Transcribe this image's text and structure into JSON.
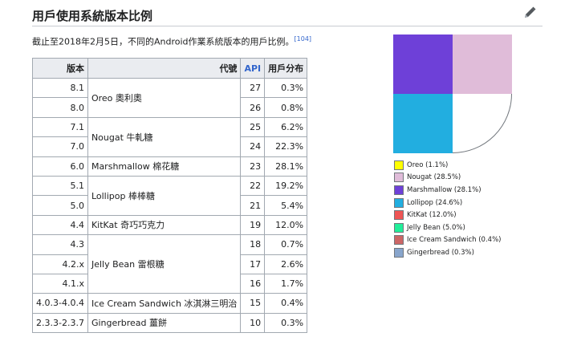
{
  "section": {
    "title": "用戶使用系統版本比例",
    "edit_icon": "pencil-icon",
    "intro_text": "截止至2018年2月5日，不同的Android作業系統版本的用戶比例。",
    "ref_label": "[104]"
  },
  "table": {
    "headers": {
      "version": "版本",
      "codename": "代號",
      "api": "API",
      "share": "用戶分布"
    },
    "groups": [
      {
        "codename": "Oreo 奧利奧",
        "rows": [
          {
            "version": "8.1",
            "api": "27",
            "share": "0.3%"
          },
          {
            "version": "8.0",
            "api": "26",
            "share": "0.8%"
          }
        ]
      },
      {
        "codename": "Nougat 牛軋糖",
        "rows": [
          {
            "version": "7.1",
            "api": "25",
            "share": "6.2%"
          },
          {
            "version": "7.0",
            "api": "24",
            "share": "22.3%"
          }
        ]
      },
      {
        "codename": "Marshmallow 棉花糖",
        "rows": [
          {
            "version": "6.0",
            "api": "23",
            "share": "28.1%"
          }
        ]
      },
      {
        "codename": "Lollipop 棒棒糖",
        "rows": [
          {
            "version": "5.1",
            "api": "22",
            "share": "19.2%"
          },
          {
            "version": "5.0",
            "api": "21",
            "share": "5.4%"
          }
        ]
      },
      {
        "codename": "KitKat 奇巧巧克力",
        "rows": [
          {
            "version": "4.4",
            "api": "19",
            "share": "12.0%"
          }
        ]
      },
      {
        "codename": "Jelly Bean 雷根糖",
        "rows": [
          {
            "version": "4.3",
            "api": "18",
            "share": "0.7%"
          },
          {
            "version": "4.2.x",
            "api": "17",
            "share": "2.6%"
          },
          {
            "version": "4.1.x",
            "api": "16",
            "share": "1.7%"
          }
        ]
      },
      {
        "codename": "Ice Cream Sandwich 冰淇淋三明治",
        "rows": [
          {
            "version": "4.0.3-4.0.4",
            "api": "15",
            "share": "0.4%"
          }
        ]
      },
      {
        "codename": "Gingerbread 薑餅",
        "rows": [
          {
            "version": "2.3.3-2.3.7",
            "api": "10",
            "share": "0.3%"
          }
        ]
      }
    ]
  },
  "chart_data": {
    "type": "pie",
    "series": [
      {
        "name": "Oreo",
        "label": "Oreo (1.1%)",
        "value": 1.1,
        "color": "#ffff00"
      },
      {
        "name": "Nougat",
        "label": "Nougat (28.5%)",
        "value": 28.5,
        "color": "#e0bcd9"
      },
      {
        "name": "Marshmallow",
        "label": "Marshmallow (28.1%)",
        "value": 28.1,
        "color": "#6e40d8"
      },
      {
        "name": "Lollipop",
        "label": "Lollipop (24.6%)",
        "value": 24.6,
        "color": "#22aee0"
      },
      {
        "name": "KitKat",
        "label": "KitKat (12.0%)",
        "value": 12.0,
        "color": "#ee5555"
      },
      {
        "name": "Jelly Bean",
        "label": "Jelly Bean (5.0%)",
        "value": 5.0,
        "color": "#22ee99"
      },
      {
        "name": "Ice Cream Sandwich",
        "label": "Ice Cream Sandwich (0.4%)",
        "value": 0.4,
        "color": "#cc6666"
      },
      {
        "name": "Gingerbread",
        "label": "Gingerbread (0.3%)",
        "value": 0.3,
        "color": "#88a5cc"
      }
    ],
    "rendered_fill": [
      "#ffffff",
      "#e0bcd9",
      "#6e40d8",
      "#22aee0"
    ],
    "legend_position": "bottom"
  }
}
